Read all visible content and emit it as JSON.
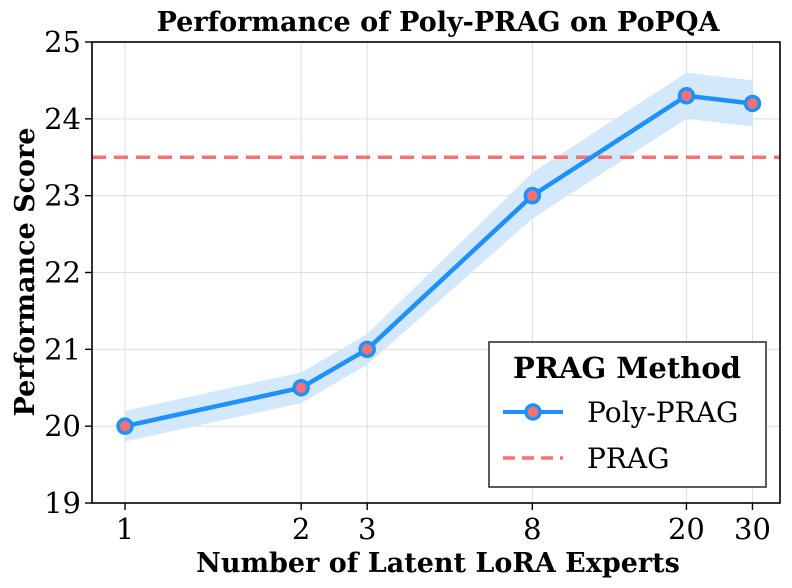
{
  "chart_data": {
    "type": "line",
    "title": "Performance of Poly-PRAG on PoPQA",
    "xlabel": "Number of Latent LoRA Experts",
    "ylabel": "Performance Score",
    "x_categories": [
      "1",
      "2",
      "3",
      "8",
      "20",
      "30"
    ],
    "x_positions": [
      0,
      1.6,
      2.2,
      3.7,
      5.1,
      5.7
    ],
    "xlim": [
      -0.3,
      5.95
    ],
    "ylim": [
      19,
      25
    ],
    "yticks": [
      19,
      20,
      21,
      22,
      23,
      24,
      25
    ],
    "grid": true,
    "series": [
      {
        "name": "Poly-PRAG",
        "values": [
          20.0,
          20.5,
          21.0,
          23.0,
          24.3,
          24.2
        ],
        "band_lower": [
          19.8,
          20.3,
          20.8,
          22.7,
          24.0,
          23.9
        ],
        "band_upper": [
          20.2,
          20.7,
          21.2,
          23.3,
          24.6,
          24.5
        ],
        "color": "#1e90ff",
        "marker_color": "#f87171",
        "band_color": "#cfe6fb"
      }
    ],
    "reference_lines": [
      {
        "name": "PRAG",
        "value": 23.5,
        "color": "#f87171",
        "style": "dashed"
      }
    ],
    "legend": {
      "title": "PRAG Method",
      "position": "bottom-right",
      "entries": [
        "Poly-PRAG",
        "PRAG"
      ]
    }
  }
}
